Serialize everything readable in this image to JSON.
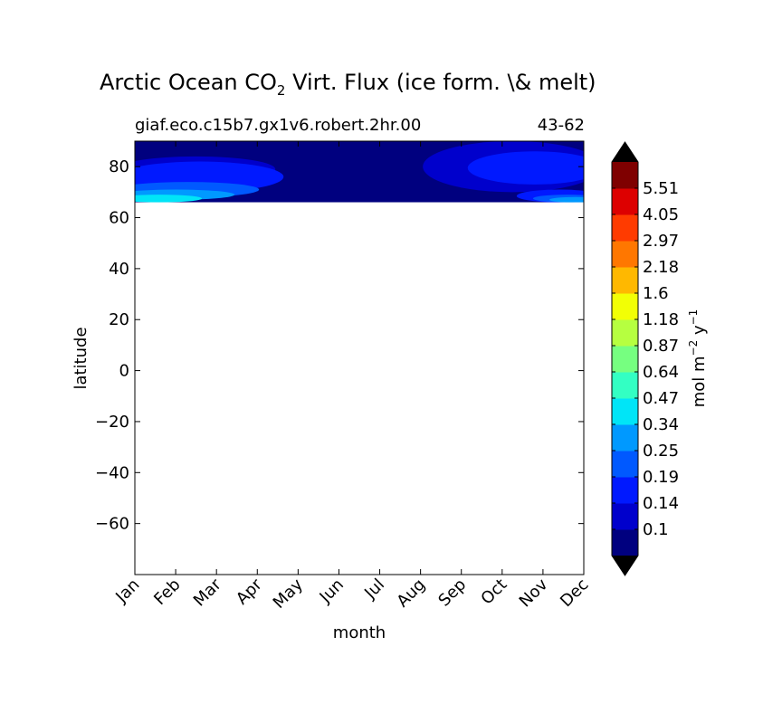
{
  "chart_data": {
    "type": "heatmap",
    "title": {
      "main": "Arctic Ocean CO",
      "subscript": "2",
      "rest": " Virt. Flux (ice form. \\& melt)"
    },
    "subtitle_left": "giaf.eco.c15b7.gx1v6.robert.2hr.00",
    "subtitle_right": "43-62",
    "xlabel": "month",
    "ylabel": "latitude",
    "x_tick_labels": [
      "Jan",
      "Feb",
      "Mar",
      "Apr",
      "May",
      "Jun",
      "Jul",
      "Aug",
      "Sep",
      "Oct",
      "Nov",
      "Dec"
    ],
    "y_ticks": [
      80,
      60,
      40,
      20,
      0,
      -20,
      -40,
      -60
    ],
    "y_tick_labels": [
      "80",
      "60",
      "40",
      "20",
      "0",
      "−20",
      "−40",
      "−60"
    ],
    "xlim": [
      0,
      11
    ],
    "ylim": [
      -80,
      90
    ],
    "data_lat_range": [
      66,
      90
    ],
    "colorbar": {
      "label": {
        "base": "mol m",
        "exp1": "−2",
        "mid": " y",
        "exp2": "−1"
      },
      "levels": [
        "0.1",
        "0.14",
        "0.19",
        "0.25",
        "0.34",
        "0.47",
        "0.64",
        "0.87",
        "1.18",
        "1.6",
        "2.18",
        "2.97",
        "4.05",
        "5.51"
      ],
      "colors": [
        "#00007f",
        "#0000cc",
        "#0019ff",
        "#0059ff",
        "#0099ff",
        "#00e5f7",
        "#33ffc3",
        "#76ff80",
        "#b6ff40",
        "#f2ff05",
        "#ffb800",
        "#ff7700",
        "#ff3b00",
        "#dd0000",
        "#7f0000"
      ],
      "under_color": "#000000",
      "over_color": "#000000"
    },
    "field_features": [
      {
        "level_index": 1,
        "x": [
          0,
          3.0
        ],
        "y": [
          74,
          84
        ]
      },
      {
        "level_index": 2,
        "x": [
          0,
          3.2
        ],
        "y": [
          70,
          82
        ]
      },
      {
        "level_index": 3,
        "x": [
          0,
          2.6
        ],
        "y": [
          68,
          74
        ]
      },
      {
        "level_index": 4,
        "x": [
          0,
          2.0
        ],
        "y": [
          67,
          71
        ]
      },
      {
        "level_index": 5,
        "x": [
          0,
          1.2
        ],
        "y": [
          66,
          69
        ]
      },
      {
        "level_index": 1,
        "x": [
          7.5,
          11
        ],
        "y": [
          70,
          90
        ]
      },
      {
        "level_index": 2,
        "x": [
          8.6,
          11
        ],
        "y": [
          73,
          86
        ]
      },
      {
        "level_index": 2,
        "x": [
          9.8,
          11
        ],
        "y": [
          66,
          71
        ]
      },
      {
        "level_index": 3,
        "x": [
          10.2,
          11
        ],
        "y": [
          66,
          69
        ]
      },
      {
        "level_index": 4,
        "x": [
          10.6,
          11
        ],
        "y": [
          66,
          68
        ]
      }
    ]
  }
}
